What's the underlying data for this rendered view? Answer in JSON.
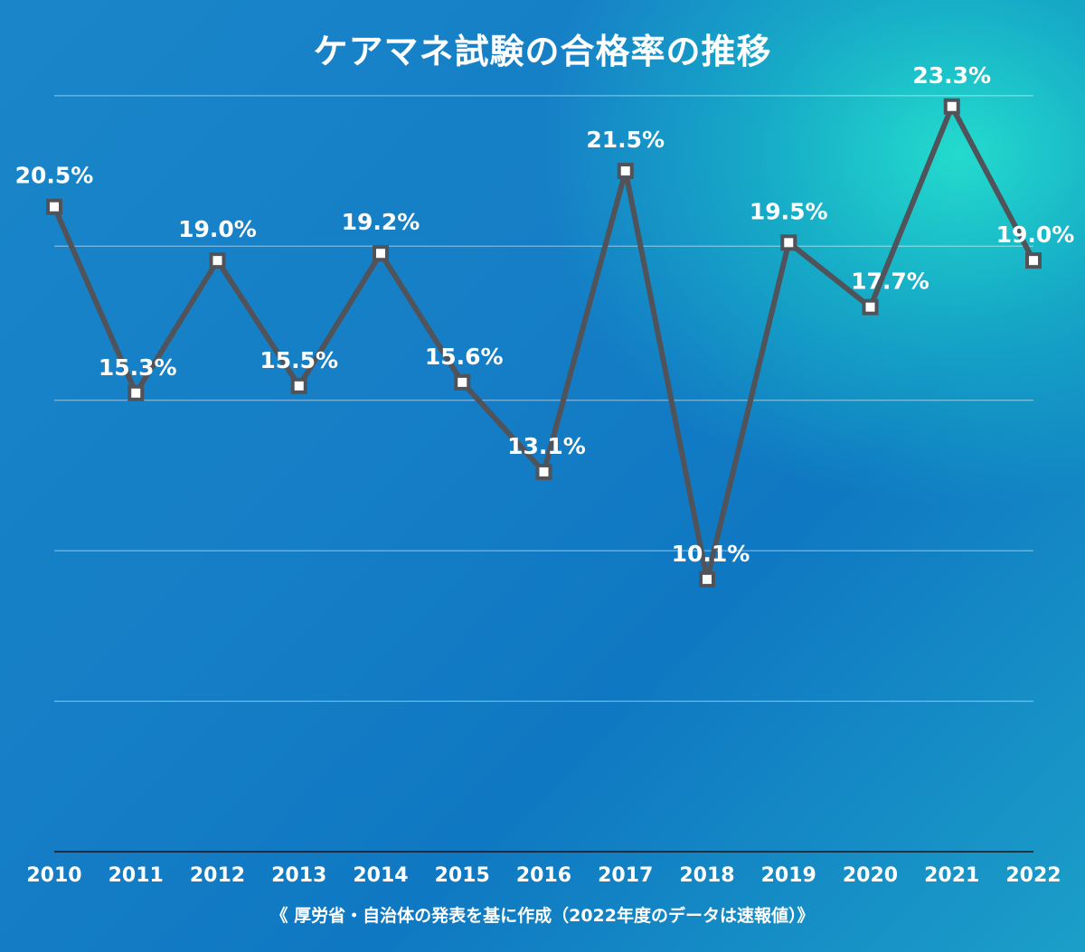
{
  "title": "ケアマネ試験の合格率の推移",
  "footnote": "《 厚労省・自治体の発表を基に作成（2022年度のデータは速報値）》",
  "colors": {
    "line": "#505359",
    "marker_fill": "#ffffff",
    "marker_stroke": "#505359",
    "text": "#ffffff"
  },
  "chart_data": {
    "type": "line",
    "title": "ケアマネ試験の合格率の推移",
    "xlabel": "",
    "ylabel": "",
    "categories": [
      "2010",
      "2011",
      "2012",
      "2013",
      "2014",
      "2015",
      "2016",
      "2017",
      "2018",
      "2019",
      "2020",
      "2021",
      "2022"
    ],
    "series": [
      {
        "name": "",
        "values": [
          20.5,
          15.3,
          19.0,
          15.5,
          19.2,
          15.6,
          13.1,
          21.5,
          10.1,
          19.5,
          17.7,
          23.3,
          19.0
        ]
      }
    ],
    "data_labels": [
      "20.5%",
      "15.3%",
      "19.0%",
      "15.5%",
      "19.2%",
      "15.6%",
      "13.1%",
      "21.5%",
      "10.1%",
      "19.5%",
      "17.7%",
      "23.3%",
      "19.0%"
    ],
    "ylim": [
      2.5,
      25
    ],
    "yticks_gridlines": [
      6.7,
      10.9,
      15.1,
      19.4,
      23.6
    ],
    "grid": true,
    "legend": "none"
  }
}
